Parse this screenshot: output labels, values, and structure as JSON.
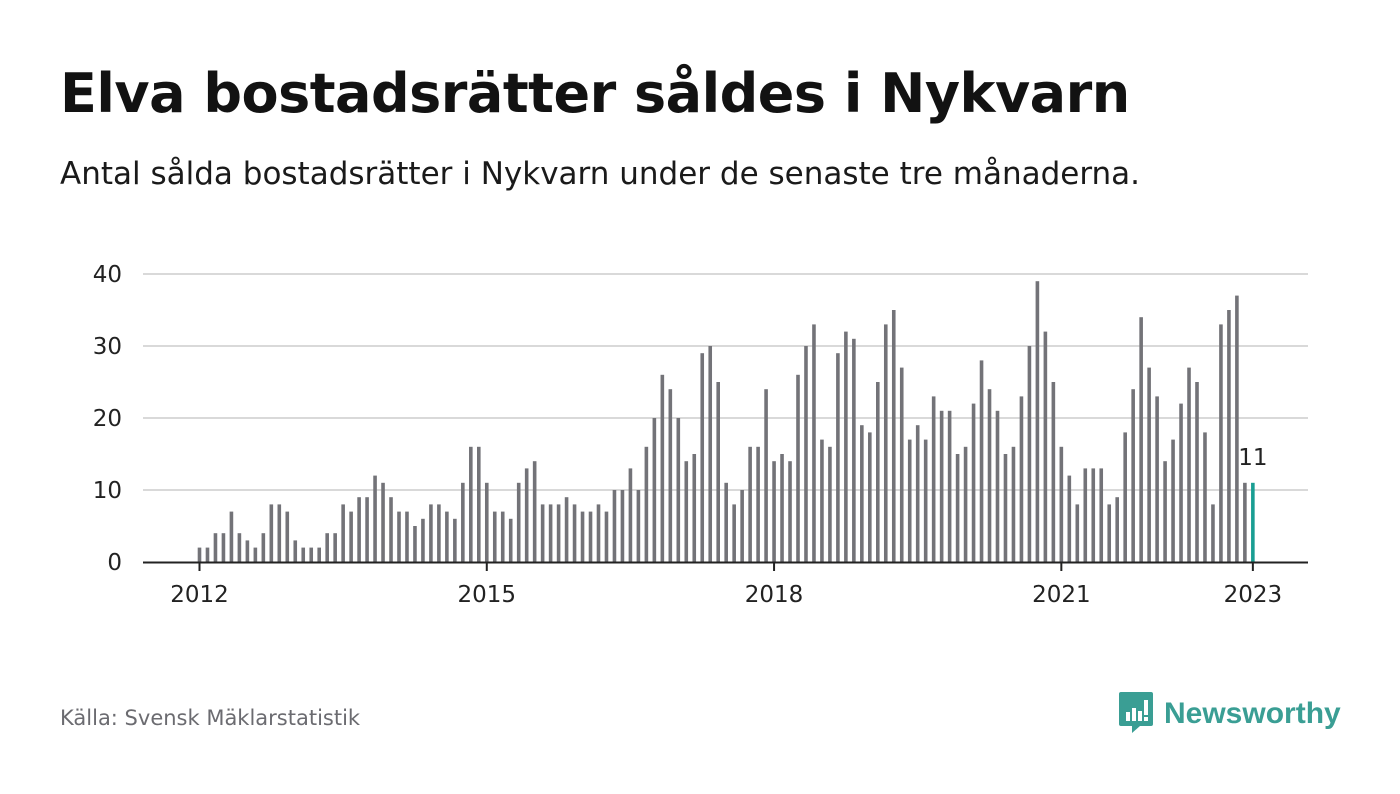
{
  "header": {
    "title": "Elva bostadsrätter såldes i Nykvarn",
    "subtitle": "Antal sålda bostadsrätter i Nykvarn under de senaste tre månaderna."
  },
  "footer": {
    "source": "Källa: Svensk Mäklarstatistik",
    "brand": "Newsworthy"
  },
  "colors": {
    "bar": "#737378",
    "highlight": "#1a9e93",
    "grid": "#d9d9d9",
    "axis": "#222222",
    "brand": "#3a9e94"
  },
  "icons": {
    "logo": "bar-chart-speech-bubble-icon"
  },
  "chart_data": {
    "type": "bar",
    "title": "Elva bostadsrätter såldes i Nykvarn",
    "xlabel": "",
    "ylabel": "",
    "ylim": [
      0,
      40
    ],
    "yticks": [
      0,
      10,
      20,
      30,
      40
    ],
    "xticks": [
      {
        "label": "2012",
        "index": 0
      },
      {
        "label": "2015",
        "index": 36
      },
      {
        "label": "2018",
        "index": 72
      },
      {
        "label": "2021",
        "index": 108
      },
      {
        "label": "2023",
        "index": 132
      }
    ],
    "grid": true,
    "legend": "none",
    "period": "monthly, Jan 2012 – Jan 2023",
    "values": [
      2,
      2,
      4,
      4,
      7,
      4,
      3,
      2,
      4,
      8,
      8,
      7,
      3,
      2,
      2,
      2,
      4,
      4,
      8,
      7,
      9,
      9,
      12,
      11,
      9,
      7,
      7,
      5,
      6,
      8,
      8,
      7,
      6,
      11,
      16,
      16,
      11,
      7,
      7,
      6,
      11,
      13,
      14,
      8,
      8,
      8,
      9,
      8,
      7,
      7,
      8,
      7,
      10,
      10,
      13,
      10,
      16,
      20,
      26,
      24,
      20,
      14,
      15,
      29,
      30,
      25,
      11,
      8,
      10,
      16,
      16,
      24,
      14,
      15,
      14,
      26,
      30,
      33,
      17,
      16,
      29,
      32,
      31,
      19,
      18,
      25,
      33,
      35,
      27,
      17,
      19,
      17,
      23,
      21,
      21,
      15,
      16,
      22,
      28,
      24,
      21,
      15,
      16,
      23,
      30,
      39,
      32,
      25,
      16,
      12,
      8,
      13,
      13,
      13,
      8,
      9,
      18,
      24,
      34,
      27,
      23,
      14,
      17,
      22,
      27,
      25,
      18,
      8,
      33,
      35,
      37,
      11,
      11
    ],
    "highlight_index": 132,
    "annotation": {
      "text": "11",
      "index": 132
    }
  }
}
